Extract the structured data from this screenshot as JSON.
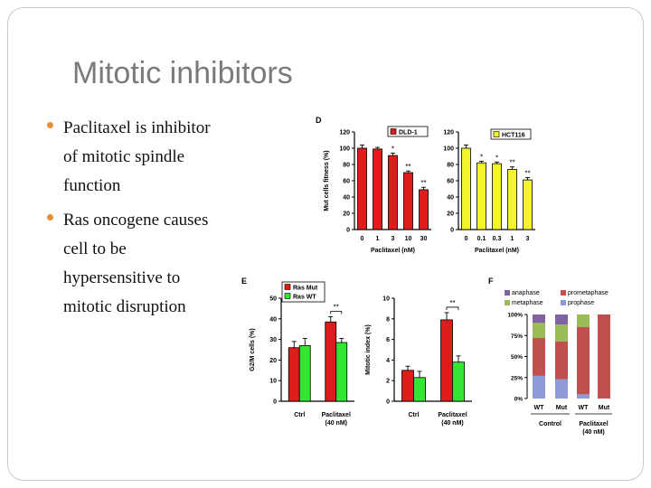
{
  "slide": {
    "title": "Mitotic inhibitors",
    "bullets": [
      "Paclitaxel is inhibitor of mitotic spindle function",
      "Ras oncogene causes cell to be hypersensitive to mitotic disruption"
    ]
  },
  "colors": {
    "red": "#dd1c1c",
    "yellow": "#f4f42a",
    "green": "#33e633",
    "prophase": "#8e9bd6",
    "prometaphase": "#c0504d",
    "metaphase": "#9bbb59",
    "anaphase": "#8064a2",
    "bullet": "#e8902f"
  },
  "chart_data": [
    {
      "panel": "D",
      "type": "bar",
      "ylabel": "Mut cells fitness (%)",
      "xlabel": "Paclitaxel (nM)",
      "categories": [
        "0",
        "1",
        "3",
        "10",
        "30"
      ],
      "series": [
        {
          "name": "DLD-1",
          "values": [
            100,
            99,
            91,
            70,
            49
          ],
          "errors": [
            4,
            2,
            3,
            2,
            3
          ],
          "color": "red"
        }
      ],
      "annotations": [
        "",
        "",
        "*",
        "**",
        "**"
      ],
      "ylim": [
        0,
        120
      ],
      "yticks": [
        0,
        20,
        40,
        60,
        80,
        100,
        120
      ],
      "legend": "top-right"
    },
    {
      "panel": "",
      "type": "bar",
      "xlabel": "Paclitaxel (nM)",
      "categories": [
        "0",
        "0.1",
        "0.3",
        "1",
        "3"
      ],
      "series": [
        {
          "name": "HCT116",
          "values": [
            100,
            82,
            81,
            74,
            61
          ],
          "errors": [
            4,
            2,
            2,
            3,
            3
          ],
          "color": "yellow"
        }
      ],
      "annotations": [
        "",
        "*",
        "*",
        "**",
        "**"
      ],
      "ylim": [
        0,
        120
      ],
      "yticks": [
        0,
        20,
        40,
        60,
        80,
        100,
        120
      ],
      "legend": "top-right"
    },
    {
      "panel": "E",
      "type": "bar",
      "ylabel": "G2/M cells (%)",
      "categories": [
        "Ctrl",
        "Paclitaxel (40 nM)"
      ],
      "series": [
        {
          "name": "Ras Mut",
          "values": [
            26,
            38.5
          ],
          "errors": [
            3,
            2.5
          ],
          "color": "red"
        },
        {
          "name": "Ras WT",
          "values": [
            27,
            28.5
          ],
          "errors": [
            3.5,
            2
          ],
          "color": "green"
        }
      ],
      "annotations": [
        "",
        "**"
      ],
      "ylim": [
        0,
        50
      ],
      "yticks": [
        0,
        10,
        20,
        30,
        40,
        50
      ],
      "legend": "top-left"
    },
    {
      "panel": "",
      "type": "bar",
      "ylabel": "Mitotic index (%)",
      "categories": [
        "Ctrl",
        "Paclitaxel (40 nM)"
      ],
      "series": [
        {
          "name": "Ras Mut",
          "values": [
            3.0,
            7.9
          ],
          "errors": [
            0.4,
            0.7
          ],
          "color": "red"
        },
        {
          "name": "Ras WT",
          "values": [
            2.3,
            3.8
          ],
          "errors": [
            0.6,
            0.6
          ],
          "color": "green"
        }
      ],
      "annotations": [
        "",
        "**"
      ],
      "ylim": [
        0,
        10
      ],
      "yticks": [
        0,
        2,
        4,
        6,
        8,
        10
      ]
    },
    {
      "panel": "F",
      "type": "bar",
      "stacked": true,
      "categories": [
        "WT",
        "Mut",
        "WT",
        "Mut"
      ],
      "groups": [
        {
          "label": "Control",
          "span": [
            0,
            1
          ]
        },
        {
          "label": "Paclitaxel (40 nM)",
          "span": [
            2,
            3
          ]
        }
      ],
      "series": [
        {
          "name": "prophase",
          "values": [
            27,
            23,
            5,
            0
          ],
          "color": "prophase"
        },
        {
          "name": "prometaphase",
          "values": [
            45,
            45,
            80,
            100
          ],
          "color": "prometaphase"
        },
        {
          "name": "metaphase",
          "values": [
            18,
            20,
            15,
            0
          ],
          "color": "metaphase"
        },
        {
          "name": "anaphase",
          "values": [
            10,
            12,
            0,
            0
          ],
          "color": "anaphase"
        }
      ],
      "ylim": [
        0,
        100
      ],
      "yticks": [
        "0%",
        "25%",
        "50%",
        "75%",
        "100%"
      ],
      "legend": "top"
    }
  ]
}
